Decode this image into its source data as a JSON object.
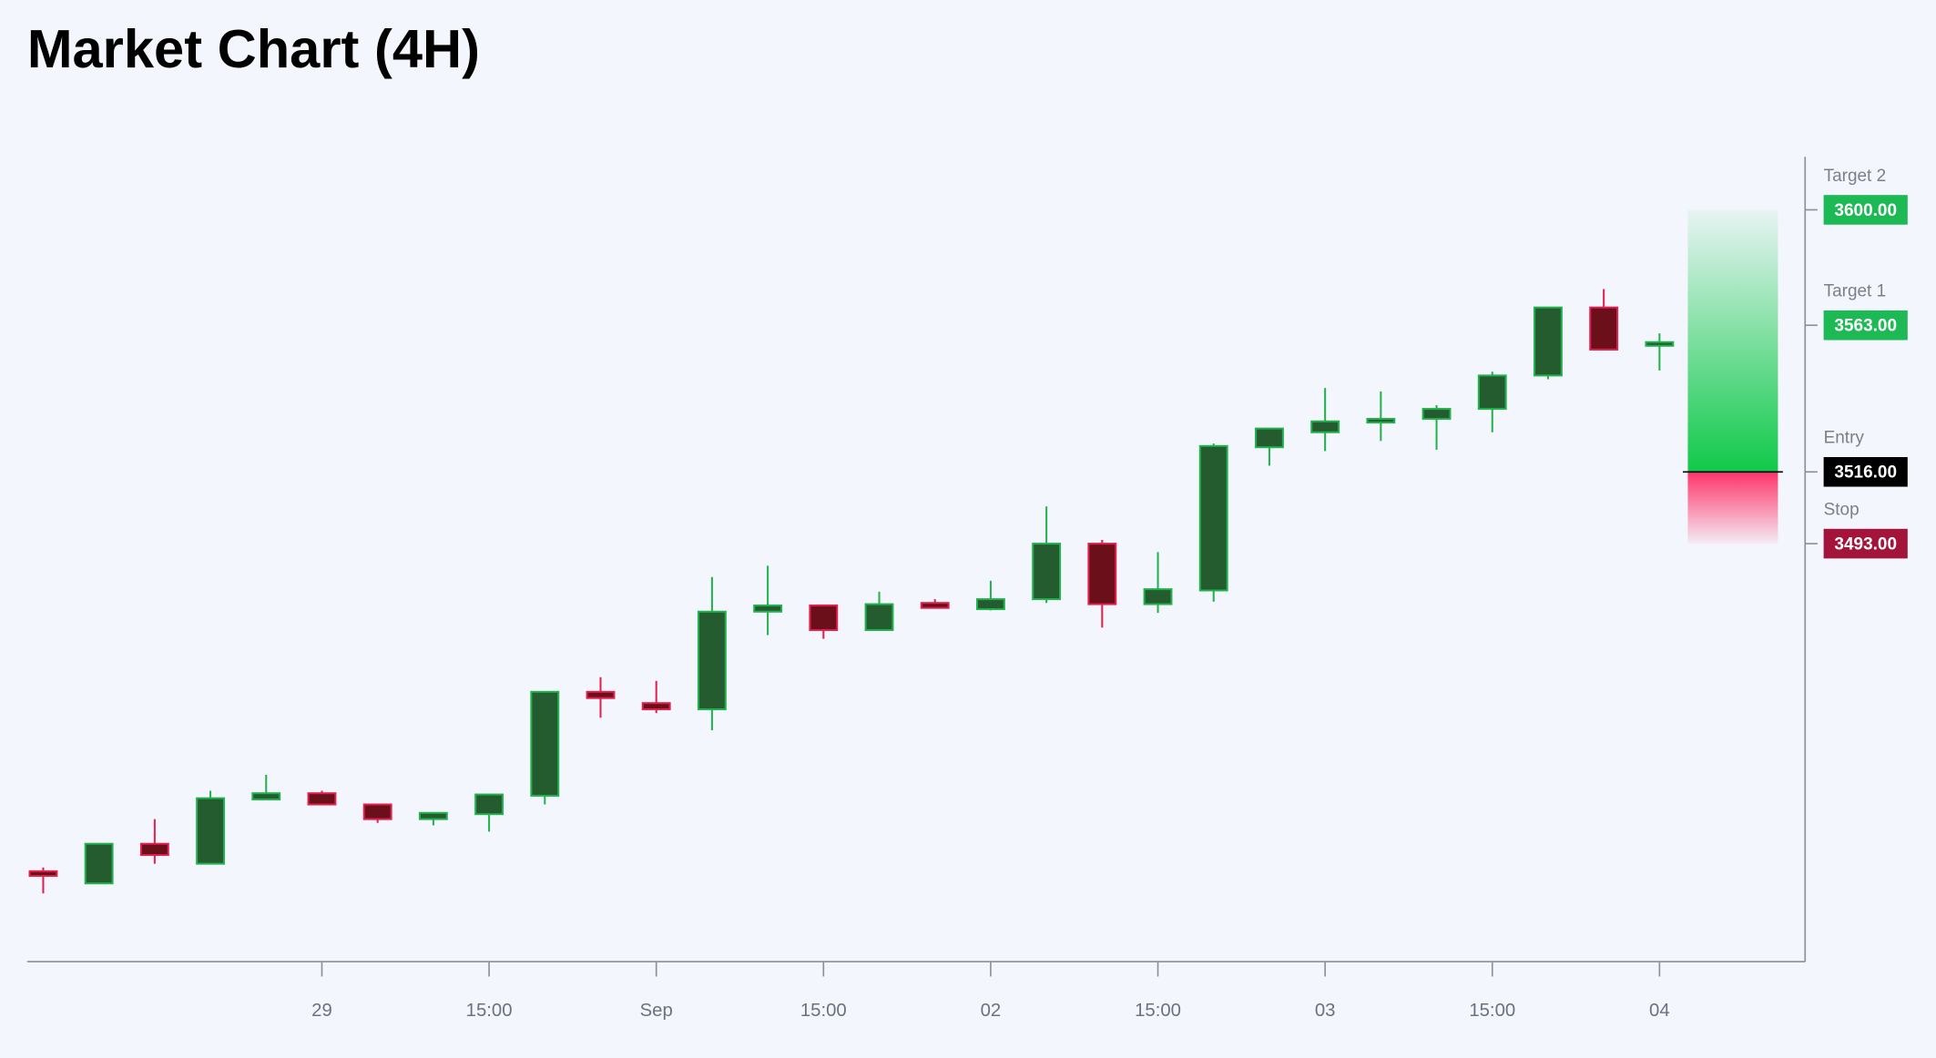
{
  "chart_data": {
    "type": "candlestick",
    "title": "Market Chart (4H)",
    "categories": [
      null,
      null,
      null,
      null,
      null,
      "29",
      null,
      null,
      "15:00",
      null,
      null,
      "Sep",
      null,
      null,
      "15:00",
      null,
      null,
      "02",
      null,
      null,
      "15:00",
      null,
      null,
      "03",
      null,
      null,
      "15:00",
      null,
      null,
      "04"
    ],
    "open": [
      3388.0,
      3384.1,
      3396.8,
      3390.4,
      3411.0,
      3413.0,
      3409.4,
      3404.7,
      3406.3,
      3412.2,
      3445.5,
      3441.9,
      3439.9,
      3471.2,
      3473.2,
      3465.3,
      3474.0,
      3472.0,
      3475.2,
      3493.0,
      3473.6,
      3478.0,
      3523.9,
      3528.7,
      3532.2,
      3533.0,
      3536.2,
      3546.9,
      3568.7,
      3556.8
    ],
    "high": [
      3389.2,
      3396.8,
      3404.7,
      3413.8,
      3418.9,
      3413.8,
      3409.4,
      3406.7,
      3412.6,
      3445.5,
      3450.2,
      3449.0,
      3482.3,
      3485.9,
      3473.2,
      3477.6,
      3475.2,
      3481.1,
      3504.9,
      3494.2,
      3490.3,
      3525.1,
      3529.9,
      3542.9,
      3541.8,
      3537.4,
      3548.1,
      3568.7,
      3574.6,
      3560.4
    ],
    "low": [
      3380.9,
      3384.1,
      3390.4,
      3390.4,
      3411.0,
      3409.4,
      3403.5,
      3402.7,
      3400.7,
      3409.4,
      3437.2,
      3438.7,
      3433.2,
      3463.7,
      3462.5,
      3465.3,
      3472.4,
      3471.6,
      3474.0,
      3466.1,
      3470.8,
      3474.4,
      3518.0,
      3522.7,
      3525.9,
      3523.1,
      3528.7,
      3545.7,
      3555.2,
      3548.5
    ],
    "close": [
      3386.5,
      3396.8,
      3393.2,
      3411.4,
      3413.0,
      3409.4,
      3404.7,
      3406.7,
      3412.6,
      3445.5,
      3443.5,
      3439.9,
      3471.2,
      3473.2,
      3465.3,
      3473.6,
      3472.4,
      3475.2,
      3493.0,
      3473.6,
      3478.4,
      3524.3,
      3529.9,
      3532.2,
      3533.0,
      3536.2,
      3546.9,
      3568.7,
      3555.2,
      3557.6
    ],
    "up_color": "#22b14c",
    "down_color": "#e0204e",
    "ylim": [
      3359,
      3617
    ],
    "levels": [
      {
        "name": "Target 2",
        "value": 3600,
        "value_label": "3600.00",
        "color": "#1db954"
      },
      {
        "name": "Target 1",
        "value": 3563,
        "value_label": "3563.00",
        "color": "#1db954"
      },
      {
        "name": "Entry",
        "value": 3516,
        "value_label": "3516.00",
        "color": "#000000"
      },
      {
        "name": "Stop",
        "value": 3493,
        "value_label": "3493.00",
        "color": "#a3133a"
      }
    ]
  }
}
